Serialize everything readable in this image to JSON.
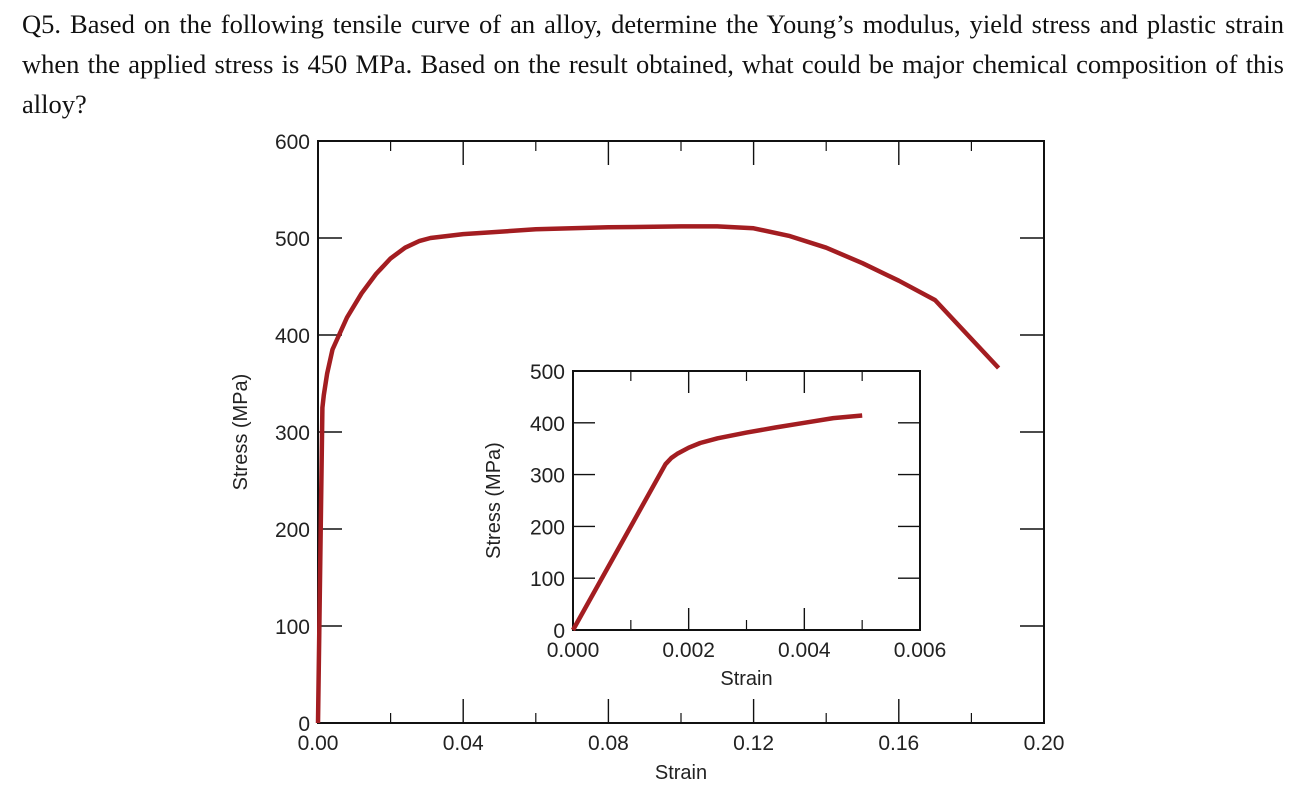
{
  "question": {
    "text": "Q5. Based on the following tensile curve of an alloy, determine the Young’s modulus, yield stress and plastic strain when the applied stress is 450 MPa. Based on the result obtained, what could be major chemical composition of this alloy?"
  },
  "colors": {
    "curve": "#a31d21",
    "axis": "#111111",
    "text": "#222222"
  },
  "chart_data": [
    {
      "type": "line",
      "xlabel": "Strain",
      "ylabel": "Stress (MPa)",
      "xlim": [
        0,
        0.2
      ],
      "ylim": [
        0,
        600
      ],
      "x_ticks": [
        "0.00",
        "0.04",
        "0.08",
        "0.12",
        "0.16",
        "0.20"
      ],
      "y_ticks": [
        "0",
        "100",
        "200",
        "300",
        "400",
        "500",
        "600"
      ],
      "grid": false,
      "series": [
        {
          "x": [
            0.0,
            0.0012,
            0.0016,
            0.0025,
            0.004,
            0.008,
            0.012,
            0.016,
            0.02,
            0.024,
            0.028,
            0.031,
            0.04,
            0.06,
            0.08,
            0.1,
            0.11,
            0.12,
            0.13,
            0.14,
            0.15,
            0.16,
            0.17,
            0.1875
          ],
          "y": [
            0,
            325,
            338,
            360,
            385,
            418,
            443,
            463,
            479,
            490,
            497,
            500,
            504,
            509,
            511,
            512,
            512,
            510,
            502,
            490,
            474,
            456,
            436,
            366
          ]
        }
      ]
    },
    {
      "type": "line",
      "xlabel": "Strain",
      "ylabel": "Stress (MPa)",
      "xlim": [
        0,
        0.006
      ],
      "ylim": [
        0,
        500
      ],
      "x_ticks": [
        "0.000",
        "0.002",
        "0.004",
        "0.006"
      ],
      "y_ticks": [
        "0",
        "100",
        "200",
        "300",
        "400",
        "500"
      ],
      "grid": false,
      "series": [
        {
          "x": [
            0.0,
            0.0016,
            0.0017,
            0.0018,
            0.002,
            0.0022,
            0.0025,
            0.003,
            0.0035,
            0.004,
            0.0045,
            0.005
          ],
          "y": [
            0,
            320,
            332,
            340,
            352,
            361,
            370,
            381,
            391,
            400,
            409,
            414
          ]
        }
      ]
    }
  ]
}
